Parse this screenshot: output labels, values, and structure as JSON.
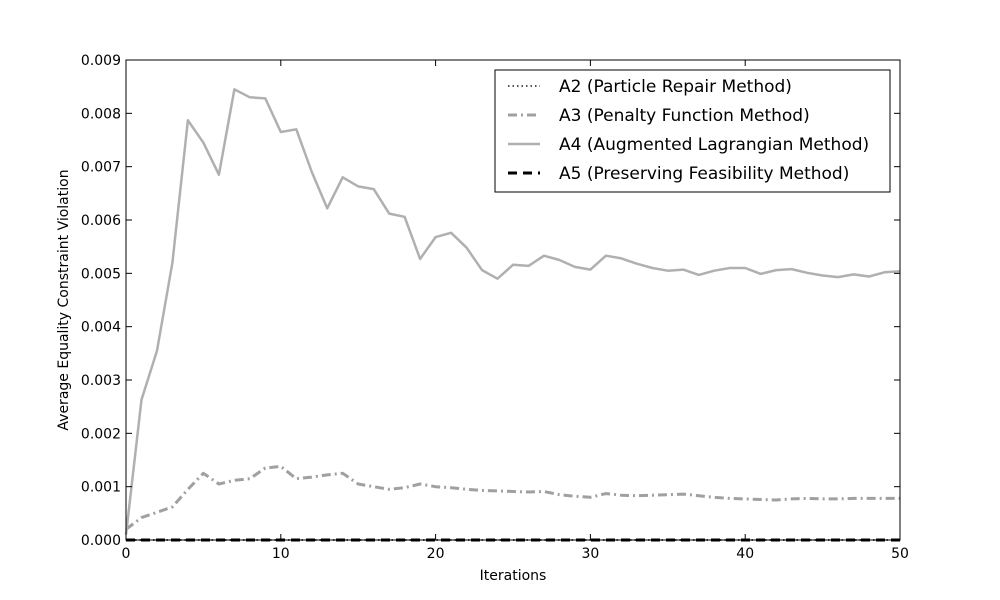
{
  "chart_data": {
    "type": "line",
    "title": "",
    "xlabel": "Iterations",
    "ylabel": "Average Equality Constraint Violation",
    "xlim": [
      0,
      50
    ],
    "ylim": [
      0,
      0.009
    ],
    "x_ticks": [
      0,
      10,
      20,
      30,
      40,
      50
    ],
    "x_tick_labels": [
      "0",
      "10",
      "20",
      "30",
      "40",
      "50"
    ],
    "y_ticks": [
      0,
      0.001,
      0.002,
      0.003,
      0.004,
      0.005,
      0.006,
      0.007,
      0.008,
      0.009
    ],
    "y_tick_labels": [
      "0.000",
      "0.001",
      "0.002",
      "0.003",
      "0.004",
      "0.005",
      "0.006",
      "0.007",
      "0.008",
      "0.009"
    ],
    "grid": false,
    "legend_position": "top-right",
    "series": [
      {
        "name": "A2 (Particle Repair Method)",
        "style": "dotted",
        "color": "#555555",
        "x": [
          0,
          50
        ],
        "y": [
          0.0,
          0.0
        ]
      },
      {
        "name": "A3 (Penalty Function Method)",
        "style": "dashdot",
        "color": "#a0a0a0",
        "x": [
          0,
          1,
          2,
          3,
          4,
          5,
          6,
          7,
          8,
          9,
          10,
          11,
          12,
          13,
          14,
          15,
          16,
          17,
          18,
          19,
          20,
          21,
          22,
          23,
          24,
          25,
          26,
          27,
          28,
          29,
          30,
          31,
          32,
          33,
          34,
          35,
          36,
          37,
          38,
          39,
          40,
          41,
          42,
          43,
          44,
          45,
          46,
          47,
          48,
          49,
          50
        ],
        "y": [
          0.0002,
          0.00042,
          0.00052,
          0.00062,
          0.00095,
          0.00125,
          0.00105,
          0.00112,
          0.00115,
          0.00135,
          0.00138,
          0.00115,
          0.00118,
          0.00122,
          0.00125,
          0.00105,
          0.001,
          0.00095,
          0.00098,
          0.00105,
          0.001,
          0.00098,
          0.00095,
          0.00093,
          0.00092,
          0.00091,
          0.0009,
          0.00091,
          0.00085,
          0.00082,
          0.0008,
          0.00087,
          0.00084,
          0.00083,
          0.00084,
          0.00085,
          0.00086,
          0.00083,
          0.0008,
          0.00078,
          0.00077,
          0.00076,
          0.00075,
          0.00077,
          0.00078,
          0.00077,
          0.00077,
          0.00078,
          0.00078,
          0.00078,
          0.00078
        ]
      },
      {
        "name": "A4 (Augmented Lagrangian Method)",
        "style": "solid",
        "color": "#b0b0b0",
        "x": [
          0,
          1,
          2,
          3,
          4,
          5,
          6,
          7,
          8,
          9,
          10,
          11,
          12,
          13,
          14,
          15,
          16,
          17,
          18,
          19,
          20,
          21,
          22,
          23,
          24,
          25,
          26,
          27,
          28,
          29,
          30,
          31,
          32,
          33,
          34,
          35,
          36,
          37,
          38,
          39,
          40,
          41,
          42,
          43,
          44,
          45,
          46,
          47,
          48,
          49,
          50
        ],
        "y": [
          0.0001,
          0.00263,
          0.00355,
          0.0052,
          0.00787,
          0.00745,
          0.00685,
          0.00845,
          0.0083,
          0.00828,
          0.00765,
          0.0077,
          0.0069,
          0.00622,
          0.0068,
          0.00663,
          0.00658,
          0.00612,
          0.00606,
          0.00527,
          0.00568,
          0.00576,
          0.00548,
          0.00506,
          0.0049,
          0.00516,
          0.00514,
          0.00533,
          0.00525,
          0.00512,
          0.00507,
          0.00533,
          0.00528,
          0.00518,
          0.0051,
          0.00505,
          0.00507,
          0.00497,
          0.00505,
          0.0051,
          0.0051,
          0.00499,
          0.00506,
          0.00508,
          0.00501,
          0.00496,
          0.00493,
          0.00498,
          0.00494,
          0.00502,
          0.00504
        ]
      },
      {
        "name": "A5 (Preserving Feasibility Method)",
        "style": "dashed",
        "color": "#000000",
        "x": [
          0,
          50
        ],
        "y": [
          0.0,
          0.0
        ]
      }
    ]
  }
}
